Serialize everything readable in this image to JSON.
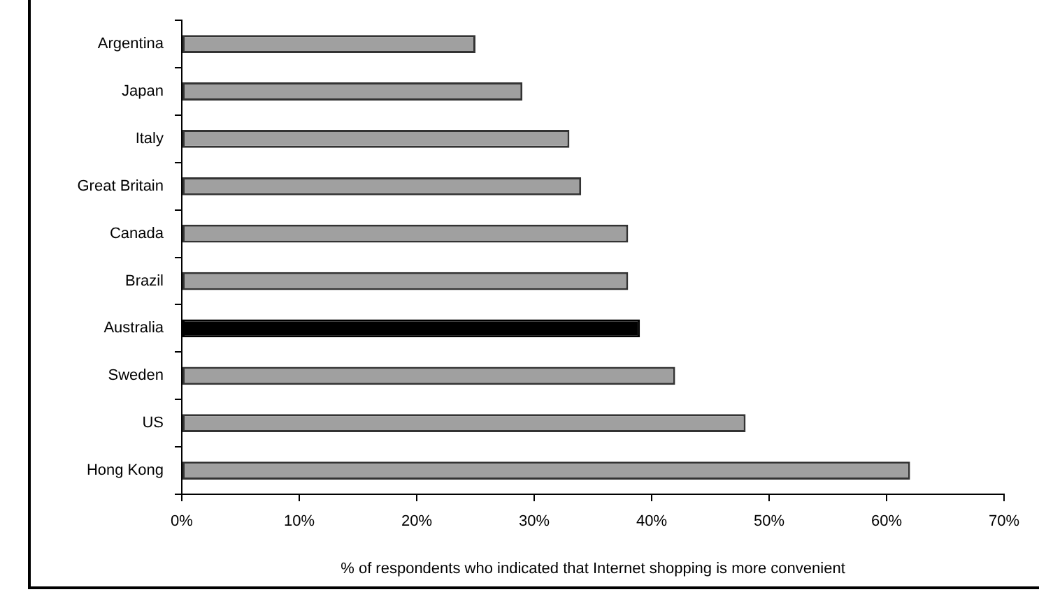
{
  "chart_data": {
    "type": "bar",
    "orientation": "horizontal",
    "xlabel": "% of respondents who indicated that Internet shopping is more convenient",
    "categories": [
      "Argentina",
      "Japan",
      "Italy",
      "Great Britain",
      "Canada",
      "Brazil",
      "Australia",
      "Sweden",
      "US",
      "Hong Kong"
    ],
    "values": [
      25,
      29,
      33,
      34,
      38,
      38,
      39,
      42,
      48,
      62
    ],
    "colors": [
      "#a0a0a0",
      "#a0a0a0",
      "#a0a0a0",
      "#a0a0a0",
      "#a0a0a0",
      "#a0a0a0",
      "#000000",
      "#a0a0a0",
      "#a0a0a0",
      "#a0a0a0"
    ],
    "xlim": [
      0,
      70
    ],
    "xticks": [
      {
        "value": 0,
        "label": "0%"
      },
      {
        "value": 10,
        "label": "10%"
      },
      {
        "value": 20,
        "label": "20%"
      },
      {
        "value": 30,
        "label": "30%"
      },
      {
        "value": 40,
        "label": "40%"
      },
      {
        "value": 50,
        "label": "50%"
      },
      {
        "value": 60,
        "label": "60%"
      },
      {
        "value": 70,
        "label": "70%"
      }
    ]
  }
}
